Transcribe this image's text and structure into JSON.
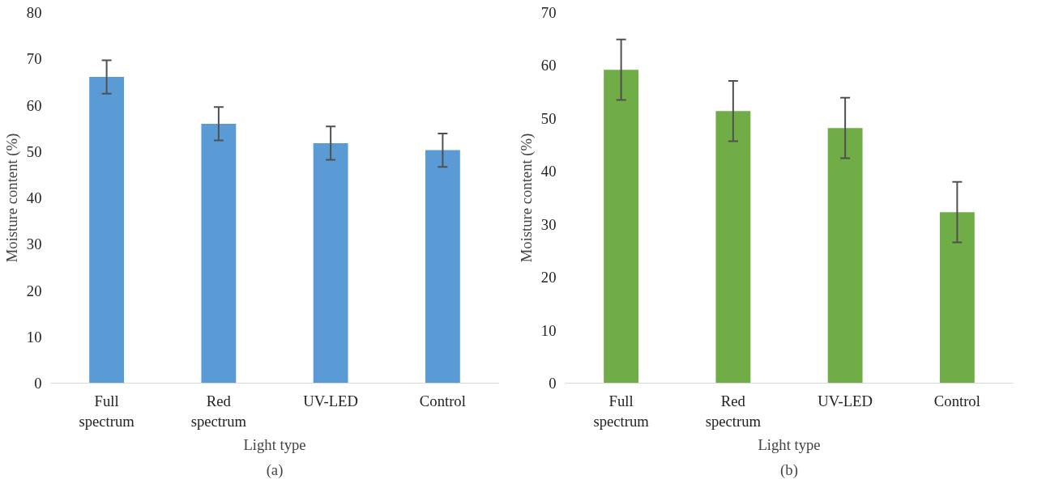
{
  "chart_data": [
    {
      "type": "bar",
      "xlabel": "Light type",
      "ylabel": "Moisture content (%)",
      "annotations": [
        "(a)"
      ],
      "categories": [
        "Full spectrum",
        "Red spectrum",
        "UV-LED",
        "Control"
      ],
      "series": [
        {
          "color": "#5b9bd5",
          "values": [
            66.1,
            56.0,
            51.8,
            50.3
          ],
          "errors": [
            3.6,
            3.6,
            3.6,
            3.6
          ]
        }
      ],
      "ylim": [
        0,
        80
      ],
      "yticks": [
        0,
        10,
        20,
        30,
        40,
        50,
        60,
        70,
        80
      ]
    },
    {
      "type": "bar",
      "xlabel": "Light type",
      "ylabel": "Moisture content (%)",
      "annotations": [
        "(b)"
      ],
      "categories": [
        "Full spectrum",
        "Red spectrum",
        "UV-LED",
        "Control"
      ],
      "series": [
        {
          "color": "#70ad47",
          "values": [
            59.2,
            51.4,
            48.2,
            32.3
          ],
          "errors": [
            5.7,
            5.7,
            5.7,
            5.7
          ]
        }
      ],
      "ylim": [
        0,
        70
      ],
      "yticks": [
        0,
        10,
        20,
        30,
        40,
        50,
        60,
        70
      ]
    }
  ]
}
